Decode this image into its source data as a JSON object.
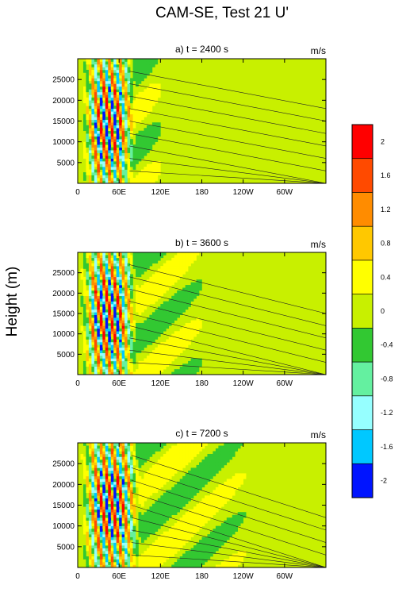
{
  "title": "CAM-SE, Test 21 U'",
  "ylabel": "Height (m)",
  "colorbar": {
    "levels": [
      "2",
      "1.6",
      "1.2",
      "0.8",
      "0.4",
      "0",
      "-0.4",
      "-0.8",
      "-1.2",
      "-1.6",
      "-2"
    ],
    "colors": [
      "#ff0000",
      "#ff4a00",
      "#ff8c00",
      "#ffc800",
      "#ffff00",
      "#c8f000",
      "#32c832",
      "#64f0a0",
      "#96ffff",
      "#00c8ff",
      "#0014ff"
    ]
  },
  "chart_data": [
    {
      "type": "heatmap",
      "title": "a) t = 2400 s",
      "units": "m/s",
      "x_ticks": [
        "0",
        "60E",
        "120E",
        "180",
        "120W",
        "60W"
      ],
      "x_tick_values": [
        0,
        60,
        120,
        180,
        240,
        300
      ],
      "xlim": [
        0,
        360
      ],
      "y_ticks": [
        "5000",
        "10000",
        "15000",
        "20000",
        "25000"
      ],
      "y_tick_values": [
        5000,
        10000,
        15000,
        20000,
        25000
      ],
      "ylim": [
        0,
        30000
      ],
      "wave_packet": {
        "lon_center": 45,
        "lon_halfwidth": 30,
        "amplitude": 2.2
      }
    },
    {
      "type": "heatmap",
      "title": "b) t = 3600 s",
      "units": "m/s",
      "x_ticks": [
        "0",
        "60E",
        "120E",
        "180",
        "120W",
        "60W"
      ],
      "x_tick_values": [
        0,
        60,
        120,
        180,
        240,
        300
      ],
      "xlim": [
        0,
        360
      ],
      "y_ticks": [
        "5000",
        "10000",
        "15000",
        "20000",
        "25000"
      ],
      "y_tick_values": [
        5000,
        10000,
        15000,
        20000,
        25000
      ],
      "ylim": [
        0,
        30000
      ],
      "wave_packet": {
        "lon_center": 45,
        "lon_halfwidth": 32,
        "amplitude": 2.2
      }
    },
    {
      "type": "heatmap",
      "title": "c) t = 7200 s",
      "units": "m/s",
      "x_ticks": [
        "0",
        "60E",
        "120E",
        "180",
        "120W",
        "60W"
      ],
      "x_tick_values": [
        0,
        60,
        120,
        180,
        240,
        300
      ],
      "xlim": [
        0,
        360
      ],
      "y_ticks": [
        "5000",
        "10000",
        "15000",
        "20000",
        "25000"
      ],
      "y_tick_values": [
        5000,
        10000,
        15000,
        20000,
        25000
      ],
      "ylim": [
        0,
        30000
      ],
      "wave_packet": {
        "lon_center": 48,
        "lon_halfwidth": 34,
        "amplitude": 2.2
      }
    }
  ]
}
